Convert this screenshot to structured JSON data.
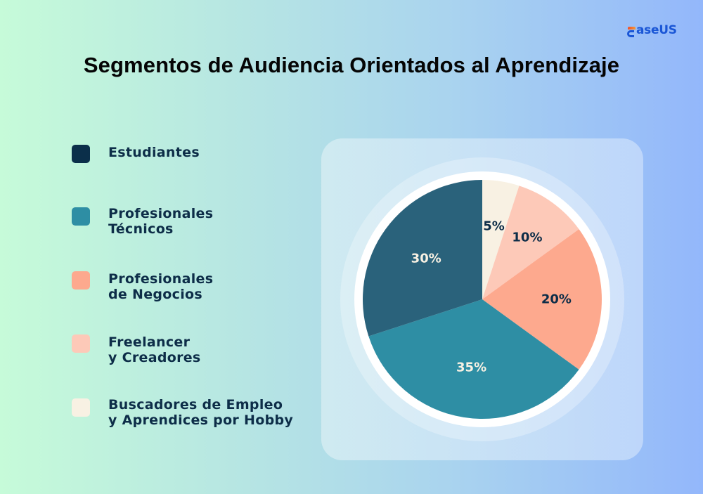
{
  "brand": {
    "logo_text": "aseUS",
    "logo_name": "EaseUS"
  },
  "chart_data": {
    "type": "pie",
    "title": "Segmentos de Audiencia Orientados al Aprendizaje",
    "categories": [
      "Buscadores de Empleo y Aprendices por Hobby",
      "Freelancer y Creadores",
      "Profesionales de Negocios",
      "Profesionales Técnicos",
      "Estudiantes"
    ],
    "values": [
      5,
      10,
      20,
      35,
      30
    ],
    "labels": [
      "5%",
      "10%",
      "20%",
      "35%",
      "30%"
    ],
    "colors": [
      "#f8f1e3",
      "#fdc9b8",
      "#fda98e",
      "#2e8ea4",
      "#2a627b"
    ],
    "label_colors": [
      "#0d2d48",
      "#0d2d48",
      "#0d2d48",
      "#f8f1e3",
      "#f8f1e3"
    ],
    "start_angle_deg": 0,
    "direction": "clockwise",
    "legend_position": "left"
  },
  "legend": {
    "items": [
      {
        "label": "Estudiantes",
        "color": "#0b2f4a"
      },
      {
        "label": "Profesionales\nTécnicos",
        "color": "#2e8ea4"
      },
      {
        "label": "Profesionales\nde Negocios",
        "color": "#fda98e"
      },
      {
        "label": "Freelancer\ny Creadores",
        "color": "#fdc9b8"
      },
      {
        "label": "Buscadores de Empleo\ny Aprendices por Hobby",
        "color": "#f8f1e3"
      }
    ]
  }
}
